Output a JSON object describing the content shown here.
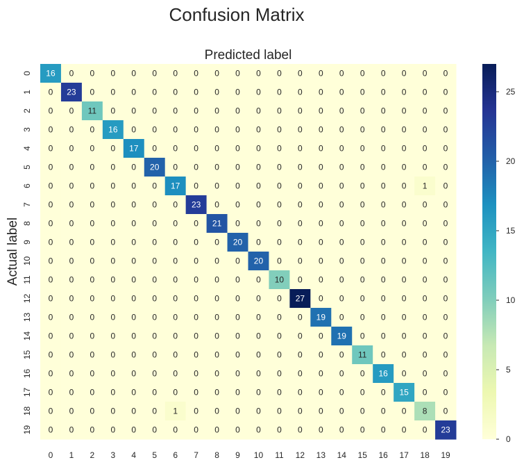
{
  "chart_data": {
    "type": "heatmap",
    "title": "Confusion Matrix",
    "xlabel": "Predicted label",
    "ylabel": "Actual label",
    "x_categories": [
      "0",
      "1",
      "2",
      "3",
      "4",
      "5",
      "6",
      "7",
      "8",
      "9",
      "10",
      "11",
      "12",
      "13",
      "14",
      "15",
      "16",
      "17",
      "18",
      "19"
    ],
    "y_categories": [
      "0",
      "1",
      "2",
      "3",
      "4",
      "5",
      "6",
      "7",
      "8",
      "9",
      "10",
      "11",
      "12",
      "13",
      "14",
      "15",
      "16",
      "17",
      "18",
      "19"
    ],
    "values": [
      [
        16,
        0,
        0,
        0,
        0,
        0,
        0,
        0,
        0,
        0,
        0,
        0,
        0,
        0,
        0,
        0,
        0,
        0,
        0,
        0
      ],
      [
        0,
        23,
        0,
        0,
        0,
        0,
        0,
        0,
        0,
        0,
        0,
        0,
        0,
        0,
        0,
        0,
        0,
        0,
        0,
        0
      ],
      [
        0,
        0,
        11,
        0,
        0,
        0,
        0,
        0,
        0,
        0,
        0,
        0,
        0,
        0,
        0,
        0,
        0,
        0,
        0,
        0
      ],
      [
        0,
        0,
        0,
        16,
        0,
        0,
        0,
        0,
        0,
        0,
        0,
        0,
        0,
        0,
        0,
        0,
        0,
        0,
        0,
        0
      ],
      [
        0,
        0,
        0,
        0,
        17,
        0,
        0,
        0,
        0,
        0,
        0,
        0,
        0,
        0,
        0,
        0,
        0,
        0,
        0,
        0
      ],
      [
        0,
        0,
        0,
        0,
        0,
        20,
        0,
        0,
        0,
        0,
        0,
        0,
        0,
        0,
        0,
        0,
        0,
        0,
        0,
        0
      ],
      [
        0,
        0,
        0,
        0,
        0,
        0,
        17,
        0,
        0,
        0,
        0,
        0,
        0,
        0,
        0,
        0,
        0,
        0,
        1,
        0
      ],
      [
        0,
        0,
        0,
        0,
        0,
        0,
        0,
        23,
        0,
        0,
        0,
        0,
        0,
        0,
        0,
        0,
        0,
        0,
        0,
        0
      ],
      [
        0,
        0,
        0,
        0,
        0,
        0,
        0,
        0,
        21,
        0,
        0,
        0,
        0,
        0,
        0,
        0,
        0,
        0,
        0,
        0
      ],
      [
        0,
        0,
        0,
        0,
        0,
        0,
        0,
        0,
        0,
        20,
        0,
        0,
        0,
        0,
        0,
        0,
        0,
        0,
        0,
        0
      ],
      [
        0,
        0,
        0,
        0,
        0,
        0,
        0,
        0,
        0,
        0,
        20,
        0,
        0,
        0,
        0,
        0,
        0,
        0,
        0,
        0
      ],
      [
        0,
        0,
        0,
        0,
        0,
        0,
        0,
        0,
        0,
        0,
        0,
        10,
        0,
        0,
        0,
        0,
        0,
        0,
        0,
        0
      ],
      [
        0,
        0,
        0,
        0,
        0,
        0,
        0,
        0,
        0,
        0,
        0,
        0,
        27,
        0,
        0,
        0,
        0,
        0,
        0,
        0
      ],
      [
        0,
        0,
        0,
        0,
        0,
        0,
        0,
        0,
        0,
        0,
        0,
        0,
        0,
        19,
        0,
        0,
        0,
        0,
        0,
        0
      ],
      [
        0,
        0,
        0,
        0,
        0,
        0,
        0,
        0,
        0,
        0,
        0,
        0,
        0,
        0,
        19,
        0,
        0,
        0,
        0,
        0
      ],
      [
        0,
        0,
        0,
        0,
        0,
        0,
        0,
        0,
        0,
        0,
        0,
        0,
        0,
        0,
        0,
        11,
        0,
        0,
        0,
        0
      ],
      [
        0,
        0,
        0,
        0,
        0,
        0,
        0,
        0,
        0,
        0,
        0,
        0,
        0,
        0,
        0,
        0,
        16,
        0,
        0,
        0
      ],
      [
        0,
        0,
        0,
        0,
        0,
        0,
        0,
        0,
        0,
        0,
        0,
        0,
        0,
        0,
        0,
        0,
        0,
        15,
        0,
        0
      ],
      [
        0,
        0,
        0,
        0,
        0,
        0,
        1,
        0,
        0,
        0,
        0,
        0,
        0,
        0,
        0,
        0,
        0,
        0,
        8,
        0
      ],
      [
        0,
        0,
        0,
        0,
        0,
        0,
        0,
        0,
        0,
        0,
        0,
        0,
        0,
        0,
        0,
        0,
        0,
        0,
        0,
        23
      ]
    ],
    "value_range": [
      0,
      27
    ],
    "colorbar_ticks": [
      0,
      5,
      10,
      15,
      20,
      25
    ],
    "colormap": [
      "#ffffd9",
      "#edf8b1",
      "#c7e9b4",
      "#7fcdbb",
      "#41b6c4",
      "#1d91c0",
      "#225ea8",
      "#253494",
      "#081d58"
    ],
    "grid": false,
    "xlabel_position": "top"
  }
}
